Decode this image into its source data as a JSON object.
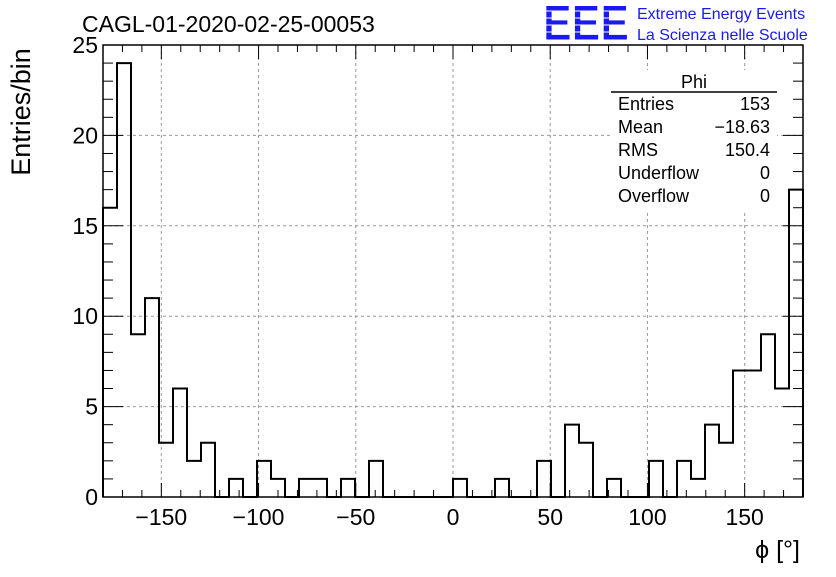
{
  "header": {
    "title": "CAGL-01-2020-02-25-00053",
    "logo_text": "EEE",
    "logo_line1": "Extreme Energy Events",
    "logo_line2": "La Scienza nelle Scuole",
    "logo_color": "#1a1aee"
  },
  "stats": {
    "title": "Phi",
    "rows": [
      {
        "label": "Entries",
        "value": "153"
      },
      {
        "label": "Mean",
        "value": "−18.63"
      },
      {
        "label": "RMS",
        "value": "150.4"
      },
      {
        "label": "Underflow",
        "value": "0"
      },
      {
        "label": "Overflow",
        "value": "0"
      }
    ]
  },
  "chart_data": {
    "type": "bar",
    "title": "CAGL-01-2020-02-25-00053",
    "xlabel": "ϕ [°]",
    "ylabel": "Entries/bin",
    "xlim": [
      -180,
      180
    ],
    "ylim": [
      0,
      25
    ],
    "bin_width": 7.2,
    "x_ticks": [
      -150,
      -100,
      -50,
      0,
      50,
      100,
      150
    ],
    "x_tick_labels": [
      "−150",
      "−100",
      "−50",
      "0",
      "50",
      "100",
      "150"
    ],
    "y_ticks": [
      0,
      5,
      10,
      15,
      20,
      25
    ],
    "y_tick_labels": [
      "0",
      "5",
      "10",
      "15",
      "20",
      "25"
    ],
    "grid": true,
    "line_color": "#000000",
    "values": [
      16,
      24,
      9,
      11,
      3,
      6,
      2,
      3,
      0,
      1,
      0,
      2,
      1,
      0,
      1,
      1,
      0,
      1,
      0,
      2,
      0,
      0,
      0,
      0,
      0,
      1,
      0,
      0,
      1,
      0,
      0,
      2,
      0,
      4,
      3,
      0,
      1,
      0,
      0,
      2,
      0,
      2,
      1,
      4,
      3,
      7,
      7,
      9,
      6,
      17
    ]
  }
}
